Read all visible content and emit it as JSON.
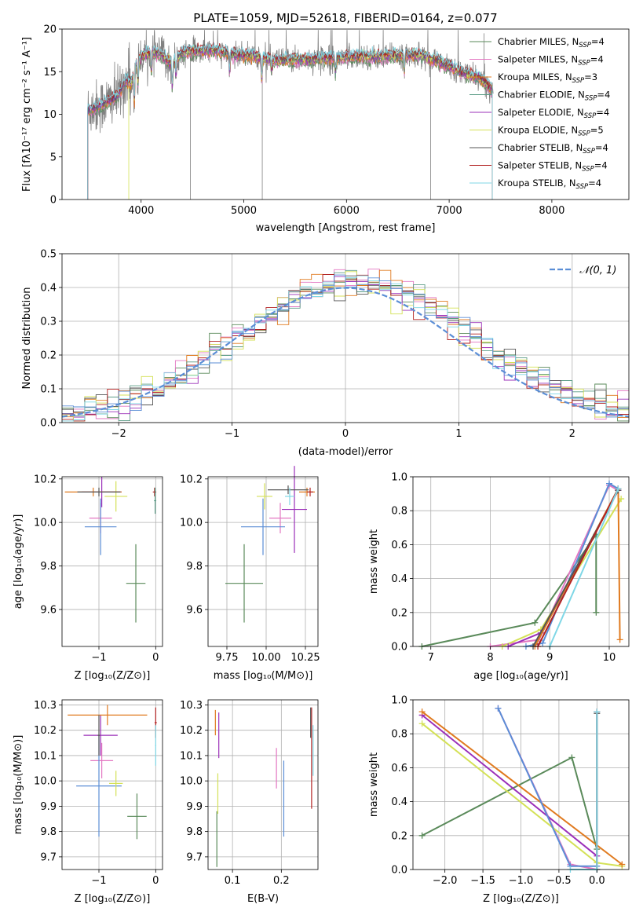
{
  "chart_data": [
    {
      "id": "spectrum",
      "type": "line",
      "title": "PLATE=1059, MJD=52618, FIBERID=0164, z=0.077",
      "xlabel": "wavelength [Angstrom, rest frame]",
      "ylabel": "Flux [fλ10⁻¹⁷ erg cm⁻² s⁻¹ A⁻¹]",
      "xlim": [
        3230,
        8750
      ],
      "ylim": [
        0,
        20
      ],
      "xticks": [
        4000,
        5000,
        6000,
        7000,
        8000
      ],
      "yticks": [
        0,
        5,
        10,
        15,
        20
      ],
      "grid": false,
      "legend_position": "top-right",
      "data_color": "#808080",
      "continuum": {
        "x": [
          3480,
          3600,
          3700,
          3780,
          3850,
          3900,
          3960,
          4020,
          4100,
          4200,
          4300,
          4400,
          4500,
          4700,
          4900,
          5100,
          5300,
          5500,
          5700,
          5900,
          6100,
          6300,
          6500,
          6700,
          6900,
          7100,
          7300,
          7420
        ],
        "y": [
          10.5,
          11.0,
          11.6,
          12.2,
          14.0,
          13.5,
          16.0,
          17.0,
          17.2,
          17.0,
          15.8,
          17.2,
          17.4,
          17.5,
          17.0,
          16.8,
          16.3,
          16.4,
          16.5,
          16.6,
          16.8,
          16.7,
          16.9,
          17.0,
          16.2,
          15.0,
          14.2,
          12.8
        ]
      },
      "series": [
        {
          "name": "Chabrier MILES, N",
          "sub": "SSP",
          "suffix": "=4",
          "color": "#5a8a5a"
        },
        {
          "name": "Salpeter MILES, N",
          "sub": "SSP",
          "suffix": "=4",
          "color": "#e377c2"
        },
        {
          "name": "Kroupa MILES, N",
          "sub": "SSP",
          "suffix": "=3",
          "color": "#e07a1f"
        },
        {
          "name": "Chabrier ELODIE, N",
          "sub": "SSP",
          "suffix": "=4",
          "color": "#5b9c86"
        },
        {
          "name": "Salpeter ELODIE, N",
          "sub": "SSP",
          "suffix": "=4",
          "color": "#9b30b9"
        },
        {
          "name": "Kroupa ELODIE, N",
          "sub": "SSP",
          "suffix": "=5",
          "color": "#d4e157"
        },
        {
          "name": "Chabrier STELIB, N",
          "sub": "SSP",
          "suffix": "=4",
          "color": "#555555"
        },
        {
          "name": "Salpeter STELIB, N",
          "sub": "SSP",
          "suffix": "=4",
          "color": "#b22222"
        },
        {
          "name": "Kroupa STELIB, N",
          "sub": "SSP",
          "suffix": "=4",
          "color": "#7fd7e6"
        }
      ]
    },
    {
      "id": "residuals",
      "type": "histogram",
      "xlabel": "(data-model)/error",
      "ylabel": "Normed distribution",
      "xlim": [
        -2.5,
        2.5
      ],
      "ylim": [
        0,
        0.5
      ],
      "xticks": [
        -2,
        -1,
        0,
        1,
        2
      ],
      "yticks": [
        0.0,
        0.1,
        0.2,
        0.3,
        0.4,
        0.5
      ],
      "grid": true,
      "bin_width": 0.1,
      "legend_position": "top-right",
      "reference_curve": {
        "label": "𝒩(0, 1)",
        "color": "#5b8ed6",
        "style": "dashed"
      }
    },
    {
      "id": "age_vs_Z",
      "type": "errorbar",
      "xlabel": "Z [log₁₀(Z/Z⊙)]",
      "ylabel": "age  [log₁₀(age/yr)]",
      "xlim": [
        -1.65,
        0.12
      ],
      "ylim": [
        9.43,
        10.21
      ],
      "xticks": [
        -1,
        0
      ],
      "yticks": [
        9.6,
        9.8,
        10.0,
        10.2
      ],
      "grid": true,
      "points": [
        {
          "x": -0.35,
          "y": 9.72,
          "xerr": 0.17,
          "yerr": 0.18,
          "color": "#5a8a5a"
        },
        {
          "x": -0.97,
          "y": 10.02,
          "xerr": 0.2,
          "yerr": 0.07,
          "color": "#e377c2"
        },
        {
          "x": -0.97,
          "y": 9.98,
          "xerr": 0.28,
          "yerr": 0.13,
          "color": "#5b8ed6"
        },
        {
          "x": -0.7,
          "y": 10.12,
          "xerr": 0.2,
          "yerr": 0.07,
          "color": "#d4e157"
        },
        {
          "x": -0.95,
          "y": 10.14,
          "xerr": 0.35,
          "yerr": 0.07,
          "color": "#9b30b9"
        },
        {
          "x": -1.1,
          "y": 10.14,
          "xerr": 0.5,
          "yerr": 0.02,
          "color": "#e07a1f"
        },
        {
          "x": -1.0,
          "y": 10.14,
          "xerr": 0.38,
          "yerr": 0.02,
          "color": "#555555"
        },
        {
          "x": -0.02,
          "y": 10.14,
          "xerr": 0.03,
          "yerr": 0.02,
          "color": "#b22222"
        },
        {
          "x": -0.01,
          "y": 10.1,
          "xerr": 0.02,
          "yerr": 0.06,
          "color": "#5b9c86"
        }
      ]
    },
    {
      "id": "age_vs_mass",
      "type": "errorbar",
      "xlabel": "mass [log₁₀(M/M⊙)]",
      "xlim": [
        9.63,
        10.33
      ],
      "ylim": [
        9.43,
        10.21
      ],
      "xticks": [
        9.75,
        10.0,
        10.25
      ],
      "xtick_labels": [
        "9.75",
        "10.00",
        "10.25"
      ],
      "yticks": [
        9.6,
        9.8,
        10.0,
        10.2
      ],
      "grid": true,
      "points": [
        {
          "x": 9.86,
          "y": 9.72,
          "xerr": 0.12,
          "yerr": 0.18,
          "color": "#5a8a5a"
        },
        {
          "x": 10.09,
          "y": 10.02,
          "xerr": 0.07,
          "yerr": 0.07,
          "color": "#e377c2"
        },
        {
          "x": 9.98,
          "y": 9.98,
          "xerr": 0.14,
          "yerr": 0.13,
          "color": "#5b8ed6"
        },
        {
          "x": 9.99,
          "y": 10.12,
          "xerr": 0.05,
          "yerr": 0.06,
          "color": "#d4e157"
        },
        {
          "x": 10.18,
          "y": 10.06,
          "xerr": 0.08,
          "yerr": 0.2,
          "color": "#9b30b9"
        },
        {
          "x": 10.26,
          "y": 10.14,
          "xerr": 0.05,
          "yerr": 0.02,
          "color": "#e07a1f"
        },
        {
          "x": 10.14,
          "y": 10.15,
          "xerr": 0.13,
          "yerr": 0.02,
          "color": "#555555"
        },
        {
          "x": 10.28,
          "y": 10.14,
          "xerr": 0.02,
          "yerr": 0.02,
          "color": "#b22222"
        },
        {
          "x": 10.15,
          "y": 10.12,
          "xerr": 0.03,
          "yerr": 0.04,
          "color": "#7fd7e6"
        }
      ]
    },
    {
      "id": "weight_vs_age",
      "type": "line",
      "xlabel": "age  [log₁₀(age/yr)]",
      "ylabel": "mass weight",
      "xlim": [
        6.7,
        10.33
      ],
      "ylim": [
        0,
        1.0
      ],
      "xticks": [
        7,
        8,
        9,
        10
      ],
      "yticks": [
        0.0,
        0.2,
        0.4,
        0.6,
        0.8,
        1.0
      ],
      "grid": true,
      "series": [
        {
          "color": "#5a8a5a",
          "x": [
            6.85,
            8.75,
            9.78,
            9.78
          ],
          "y": [
            0.0,
            0.14,
            0.66,
            0.2
          ]
        },
        {
          "color": "#e377c2",
          "x": [
            8.0,
            8.82,
            10.0,
            10.15
          ],
          "y": [
            0.0,
            0.04,
            0.95,
            0.92
          ]
        },
        {
          "color": "#5b8ed6",
          "x": [
            8.6,
            8.88,
            10.0,
            10.15
          ],
          "y": [
            0.0,
            0.02,
            0.96,
            0.93
          ]
        },
        {
          "color": "#d4e157",
          "x": [
            8.2,
            8.85,
            10.2
          ],
          "y": [
            0.0,
            0.1,
            0.87
          ]
        },
        {
          "color": "#9b30b9",
          "x": [
            8.3,
            8.85,
            10.15
          ],
          "y": [
            0.0,
            0.08,
            0.92
          ]
        },
        {
          "color": "#e07a1f",
          "x": [
            8.75,
            10.15,
            10.18
          ],
          "y": [
            0.0,
            0.93,
            0.04
          ]
        },
        {
          "color": "#555555",
          "x": [
            8.72,
            10.15
          ],
          "y": [
            0.0,
            0.92
          ]
        },
        {
          "color": "#b22222",
          "x": [
            8.8,
            10.15
          ],
          "y": [
            0.0,
            0.93
          ]
        },
        {
          "color": "#7fd7e6",
          "x": [
            9.0,
            10.15
          ],
          "y": [
            0.0,
            0.93
          ]
        }
      ]
    },
    {
      "id": "mass_vs_Z",
      "type": "errorbar",
      "xlabel": "Z [log₁₀(Z/Z⊙)]",
      "ylabel": "mass [log₁₀(M/M⊙)]",
      "xlim": [
        -1.65,
        0.12
      ],
      "ylim": [
        9.65,
        10.32
      ],
      "xticks": [
        -1,
        0
      ],
      "yticks": [
        9.7,
        9.8,
        9.9,
        10.0,
        10.1,
        10.2,
        10.3
      ],
      "grid": true,
      "points": [
        {
          "x": -0.33,
          "y": 9.86,
          "xerr": 0.17,
          "yerr": 0.09,
          "color": "#5a8a5a"
        },
        {
          "x": -0.95,
          "y": 10.08,
          "xerr": 0.2,
          "yerr": 0.07,
          "color": "#e377c2"
        },
        {
          "x": -1.0,
          "y": 9.98,
          "xerr": 0.4,
          "yerr": 0.2,
          "color": "#5b8ed6"
        },
        {
          "x": -0.7,
          "y": 9.99,
          "xerr": 0.12,
          "yerr": 0.05,
          "color": "#d4e157"
        },
        {
          "x": -0.97,
          "y": 10.18,
          "xerr": 0.3,
          "yerr": 0.08,
          "color": "#9b30b9"
        },
        {
          "x": -0.85,
          "y": 10.26,
          "xerr": 0.7,
          "yerr": 0.04,
          "color": "#e07a1f"
        },
        {
          "x": -1.0,
          "y": 10.18,
          "xerr": 0.02,
          "yerr": 0.08,
          "color": "#555555"
        },
        {
          "x": 0.0,
          "y": 10.23,
          "xerr": 0.02,
          "yerr": 0.06,
          "color": "#b22222"
        },
        {
          "x": 0.0,
          "y": 10.14,
          "xerr": 0.01,
          "yerr": 0.08,
          "color": "#7fd7e6"
        }
      ]
    },
    {
      "id": "mass_vs_ebv",
      "type": "errorbar",
      "xlabel": "E(B-V)",
      "xlim": [
        0.05,
        0.275
      ],
      "ylim": [
        9.65,
        10.32
      ],
      "xticks": [
        0.1,
        0.2
      ],
      "yticks": [
        9.7,
        9.8,
        9.9,
        10.0,
        10.1,
        10.2,
        10.3
      ],
      "grid": true,
      "points": [
        {
          "x": 0.068,
          "y": 9.77,
          "xerr": 0.0,
          "yerr": 0.11,
          "color": "#5a8a5a"
        },
        {
          "x": 0.07,
          "y": 9.95,
          "xerr": 0.0,
          "yerr": 0.08,
          "color": "#d4e157"
        },
        {
          "x": 0.072,
          "y": 10.18,
          "xerr": 0.0,
          "yerr": 0.09,
          "color": "#9b30b9"
        },
        {
          "x": 0.065,
          "y": 10.23,
          "xerr": 0.0,
          "yerr": 0.05,
          "color": "#e07a1f"
        },
        {
          "x": 0.19,
          "y": 10.05,
          "xerr": 0.0,
          "yerr": 0.08,
          "color": "#e377c2"
        },
        {
          "x": 0.205,
          "y": 9.93,
          "xerr": 0.0,
          "yerr": 0.15,
          "color": "#5b8ed6"
        },
        {
          "x": 0.262,
          "y": 10.09,
          "xerr": 0.0,
          "yerr": 0.2,
          "color": "#b22222"
        },
        {
          "x": 0.265,
          "y": 10.12,
          "xerr": 0.0,
          "yerr": 0.1,
          "color": "#7fd7e6"
        },
        {
          "x": 0.26,
          "y": 10.23,
          "xerr": 0.0,
          "yerr": 0.06,
          "color": "#555555"
        }
      ]
    },
    {
      "id": "weight_vs_Z",
      "type": "line",
      "xlabel": "Z [log₁₀(Z/Z⊙)]",
      "ylabel": "mass weight",
      "xlim": [
        -2.42,
        0.42
      ],
      "ylim": [
        0,
        1.0
      ],
      "xticks": [
        -2.0,
        -1.5,
        -1.0,
        -0.5,
        0.0
      ],
      "yticks": [
        0.0,
        0.2,
        0.4,
        0.6,
        0.8,
        1.0
      ],
      "grid": true,
      "series": [
        {
          "color": "#5a8a5a",
          "x": [
            -2.3,
            -0.33,
            0.0
          ],
          "y": [
            0.2,
            0.66,
            0.12
          ]
        },
        {
          "color": "#e377c2",
          "x": [
            -1.3,
            -0.35,
            0.0
          ],
          "y": [
            0.95,
            0.03,
            0.0
          ]
        },
        {
          "color": "#d4e157",
          "x": [
            -2.3,
            0.0,
            0.33
          ],
          "y": [
            0.86,
            0.04,
            0.02
          ]
        },
        {
          "color": "#9b30b9",
          "x": [
            -2.3,
            0.0
          ],
          "y": [
            0.91,
            0.08
          ]
        },
        {
          "color": "#e07a1f",
          "x": [
            -2.3,
            0.33
          ],
          "y": [
            0.93,
            0.03
          ]
        },
        {
          "color": "#5b8ed6",
          "x": [
            -1.3,
            -0.35,
            0.0,
            0.0
          ],
          "y": [
            0.95,
            0.02,
            0.02,
            0.93
          ]
        },
        {
          "color": "#555555",
          "x": [
            0.0,
            0.0
          ],
          "y": [
            0.0,
            0.92
          ]
        },
        {
          "color": "#b22222",
          "x": [
            0.0,
            0.0
          ],
          "y": [
            0.0,
            0.93
          ]
        },
        {
          "color": "#7fd7e6",
          "x": [
            0.0,
            0.0,
            -0.35
          ],
          "y": [
            0.93,
            0.0,
            0.0
          ]
        }
      ]
    }
  ]
}
